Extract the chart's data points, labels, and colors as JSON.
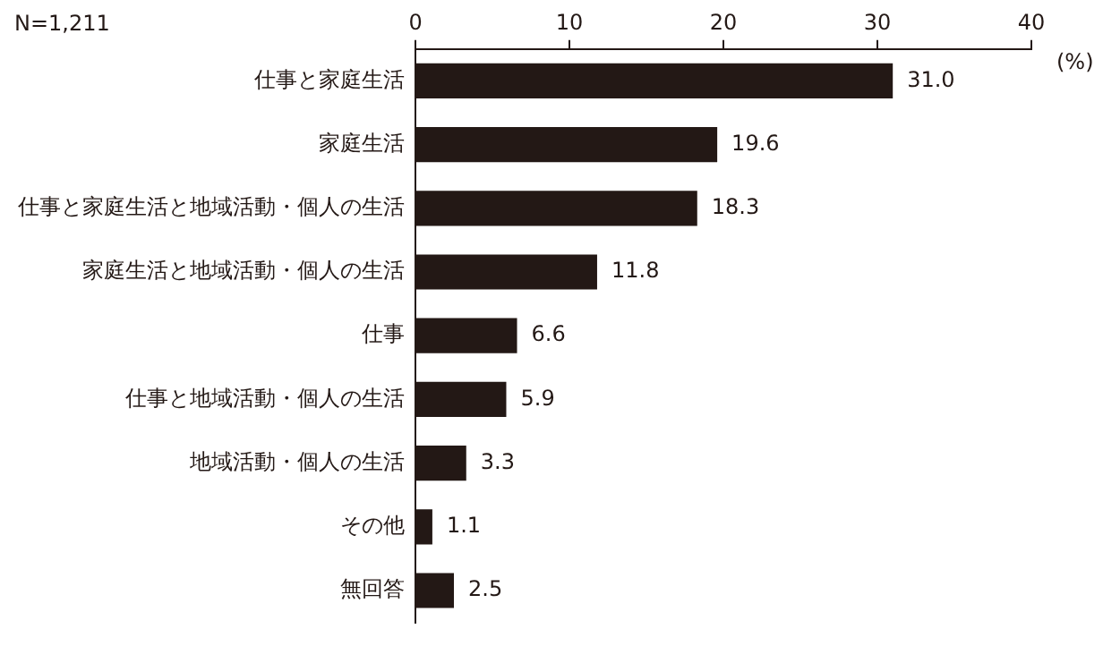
{
  "chart_data": {
    "type": "bar",
    "orientation": "horizontal",
    "categories": [
      "仕事と家庭生活",
      "家庭生活",
      "仕事と家庭生活と地域活動・個人の生活",
      "家庭生活と地域活動・個人の生活",
      "仕事",
      "仕事と地域活動・個人の生活",
      "地域活動・個人の生活",
      "その他",
      "無回答"
    ],
    "values": [
      31.0,
      19.6,
      18.3,
      11.8,
      6.6,
      5.9,
      3.3,
      1.1,
      2.5
    ],
    "value_labels": [
      "31.0",
      "19.6",
      "18.3",
      "11.8",
      "6.6",
      "5.9",
      "3.3",
      "1.1",
      "2.5"
    ],
    "color": "#231815",
    "xlim": [
      0,
      40
    ],
    "xticks": [
      0,
      10,
      20,
      30,
      40
    ],
    "xlabel": "(%)",
    "annotations": [
      "N=1,211"
    ],
    "grid": false,
    "legend": false
  }
}
